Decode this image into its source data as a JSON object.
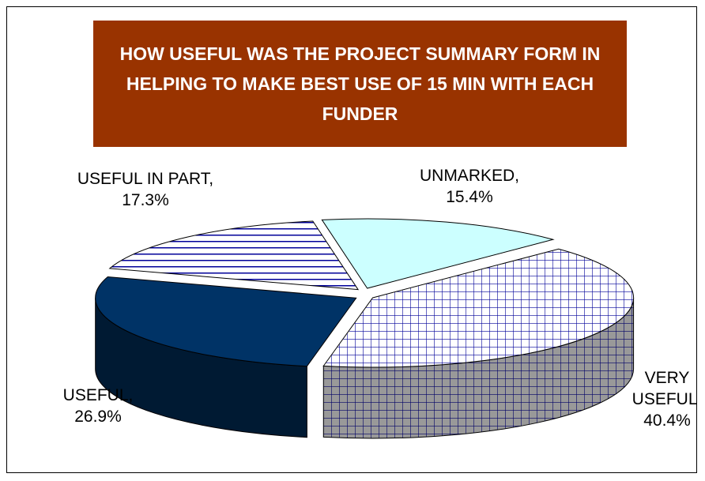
{
  "chart_data": {
    "type": "pie3d",
    "title": "HOW USEFUL WAS THE PROJECT SUMMARY FORM IN HELPING TO MAKE BEST USE OF 15 MIN WITH EACH FUNDER",
    "categories": [
      "UNMARKED,",
      "VERY USEFUL,",
      "USEFUL,",
      "USEFUL IN PART,"
    ],
    "values": [
      15.4,
      40.4,
      26.9,
      17.3
    ],
    "value_labels": [
      "15.4%",
      "40.4%",
      "26.9%",
      "17.3%"
    ],
    "colors": [
      "#ccffff",
      "#ffffff",
      "#003366",
      "#ffffff"
    ],
    "side_colors": [
      "#669999",
      "#999999",
      "#001a33",
      "#666699"
    ],
    "patterns": [
      null,
      "grid",
      null,
      "stripes"
    ]
  }
}
